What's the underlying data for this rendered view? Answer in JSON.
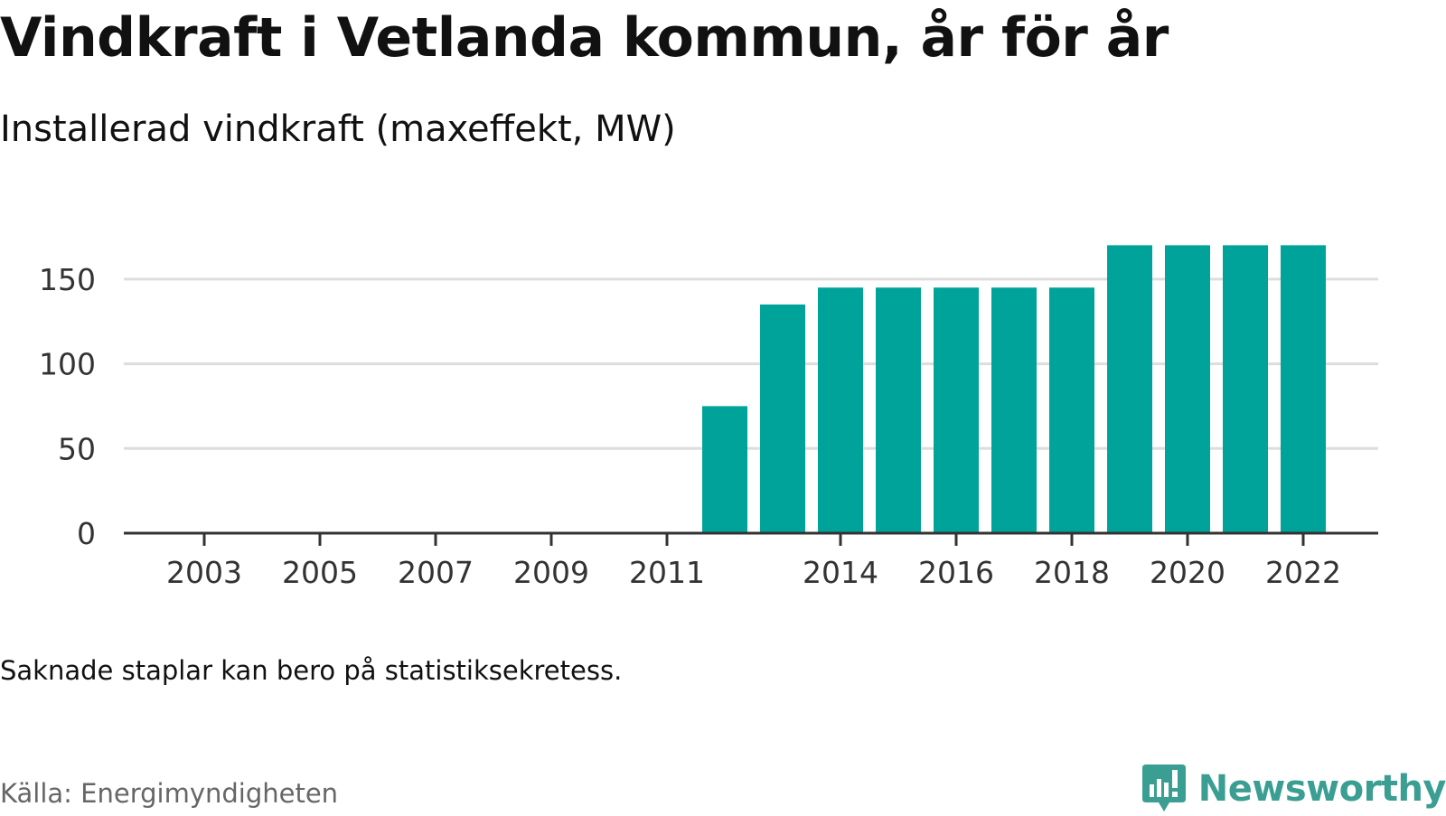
{
  "chart_data": {
    "type": "bar",
    "title": "Vindkraft i Vetlanda kommun, år för år",
    "subtitle": "Installerad vindkraft (maxeffekt, MW)",
    "categories": [
      "2003",
      "2004",
      "2005",
      "2006",
      "2007",
      "2008",
      "2009",
      "2010",
      "2011",
      "2012",
      "2013",
      "2014",
      "2015",
      "2016",
      "2017",
      "2018",
      "2019",
      "2020",
      "2021",
      "2022"
    ],
    "values": [
      0,
      0,
      0,
      0,
      0,
      0,
      0,
      0,
      0,
      75,
      135,
      145,
      145,
      145,
      145,
      145,
      170,
      170,
      170,
      170
    ],
    "xticks": [
      "2003",
      "2005",
      "2007",
      "2009",
      "2011",
      "2014",
      "2016",
      "2018",
      "2020",
      "2022"
    ],
    "yticks": [
      "0",
      "50",
      "100",
      "150"
    ],
    "ylim": [
      0,
      175
    ],
    "grid": true,
    "bar_color": "#00a39a"
  },
  "note": "Saknade staplar kan bero på statistiksekretess.",
  "source": "Källa: Energimyndigheten",
  "brand": {
    "name": "Newsworthy",
    "icon": "newsworthy-logo-icon",
    "color": "#3a9e93"
  }
}
